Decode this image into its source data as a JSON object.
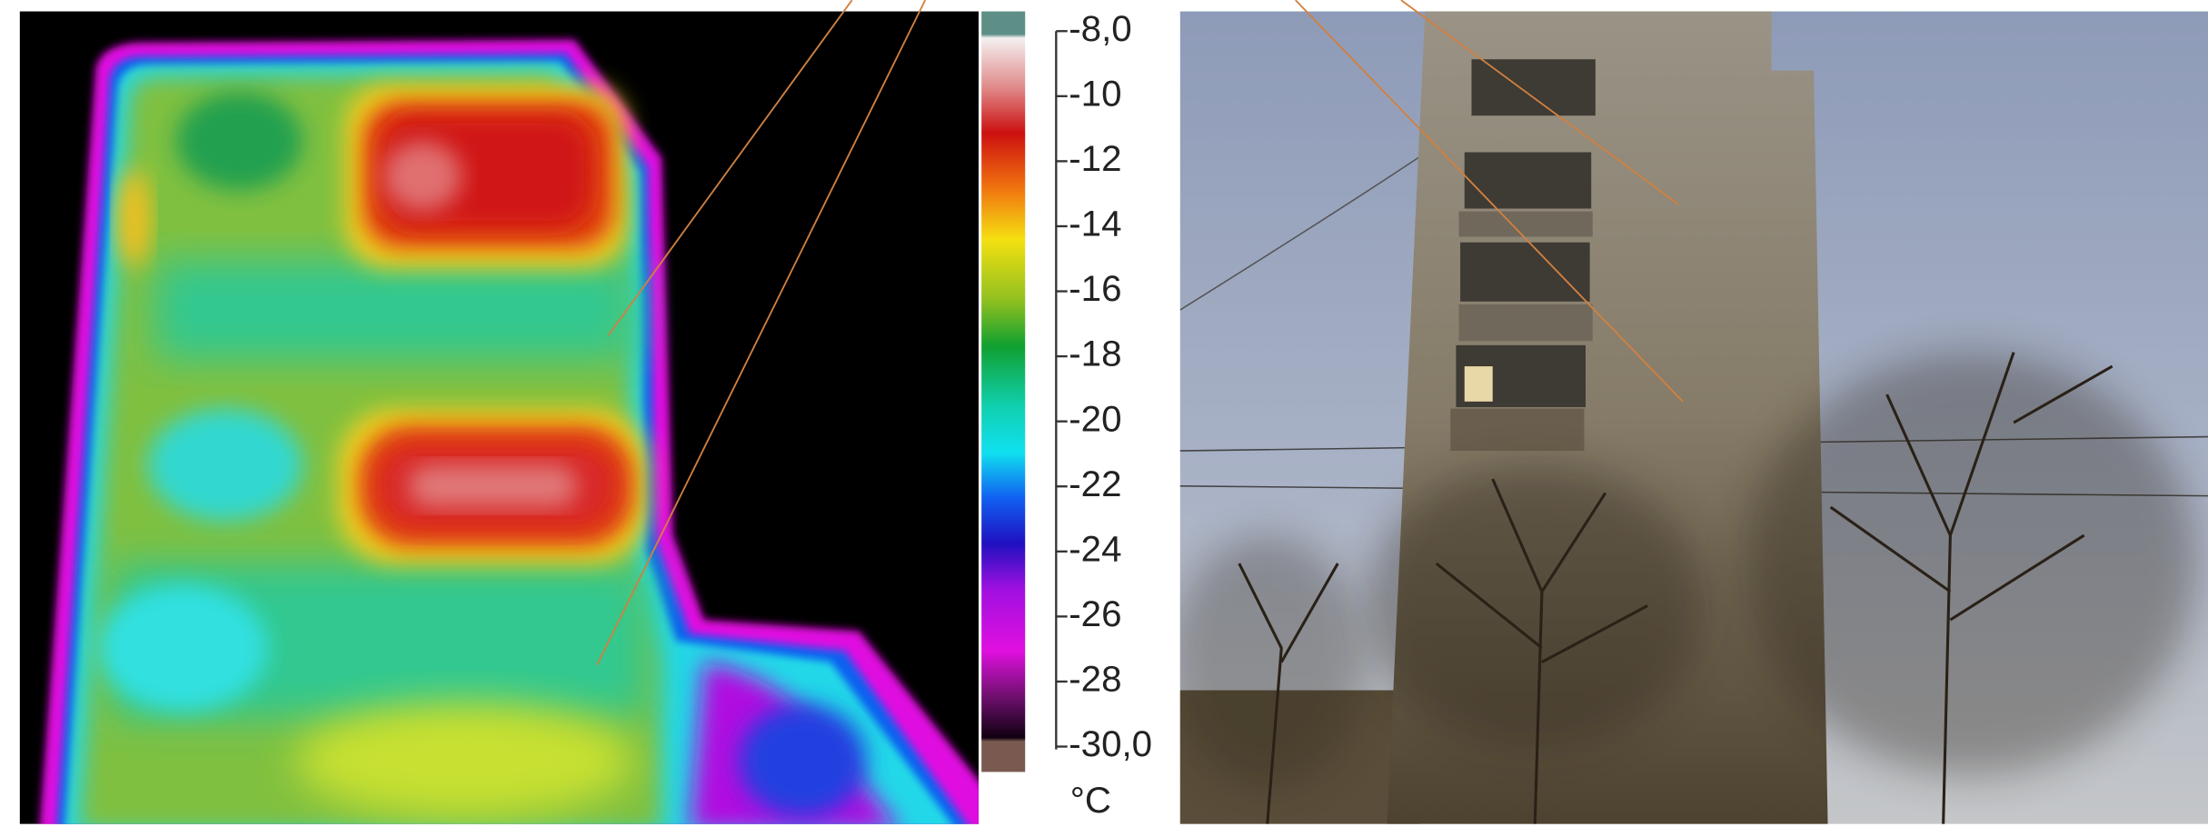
{
  "scale": {
    "labels": [
      "-8,0",
      "-10",
      "-12",
      "-14",
      "-16",
      "-18",
      "-20",
      "-22",
      "-24",
      "-26",
      "-28",
      "-30,0"
    ],
    "unit": "°C"
  }
}
